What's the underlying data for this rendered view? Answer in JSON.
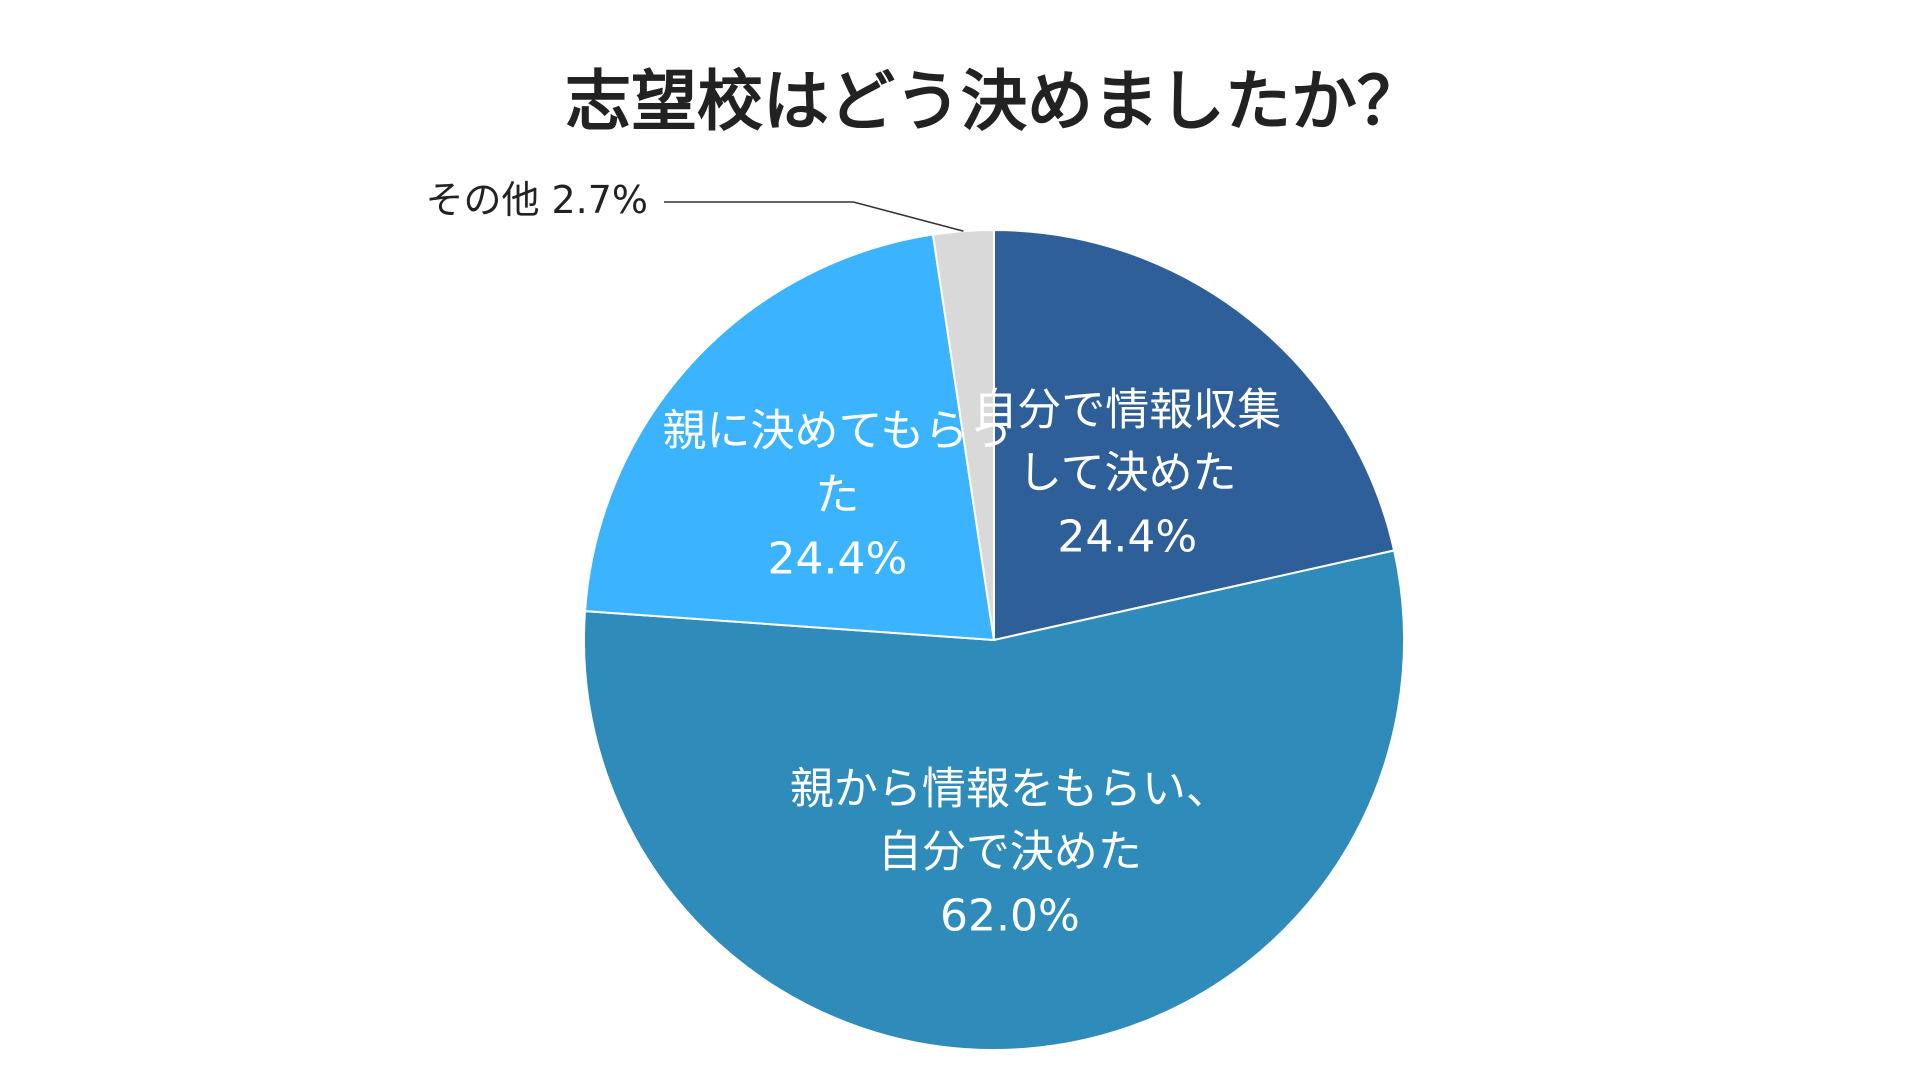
{
  "chart_data": {
    "type": "pie",
    "title": "志望校はどう決めましたか？",
    "categories": [
      "自分で情報収集して決めた",
      "親から情報をもらい、自分で決めた",
      "親に決めてもらった",
      "その他"
    ],
    "values": [
      24.4,
      62.0,
      24.4,
      2.7
    ],
    "value_labels": [
      "24.4%",
      "62.0%",
      "24.4%",
      "2.7%"
    ],
    "colors": [
      "#2e5f99",
      "#2e8bba",
      "#3bb3ff",
      "#d9d9d9"
    ]
  }
}
